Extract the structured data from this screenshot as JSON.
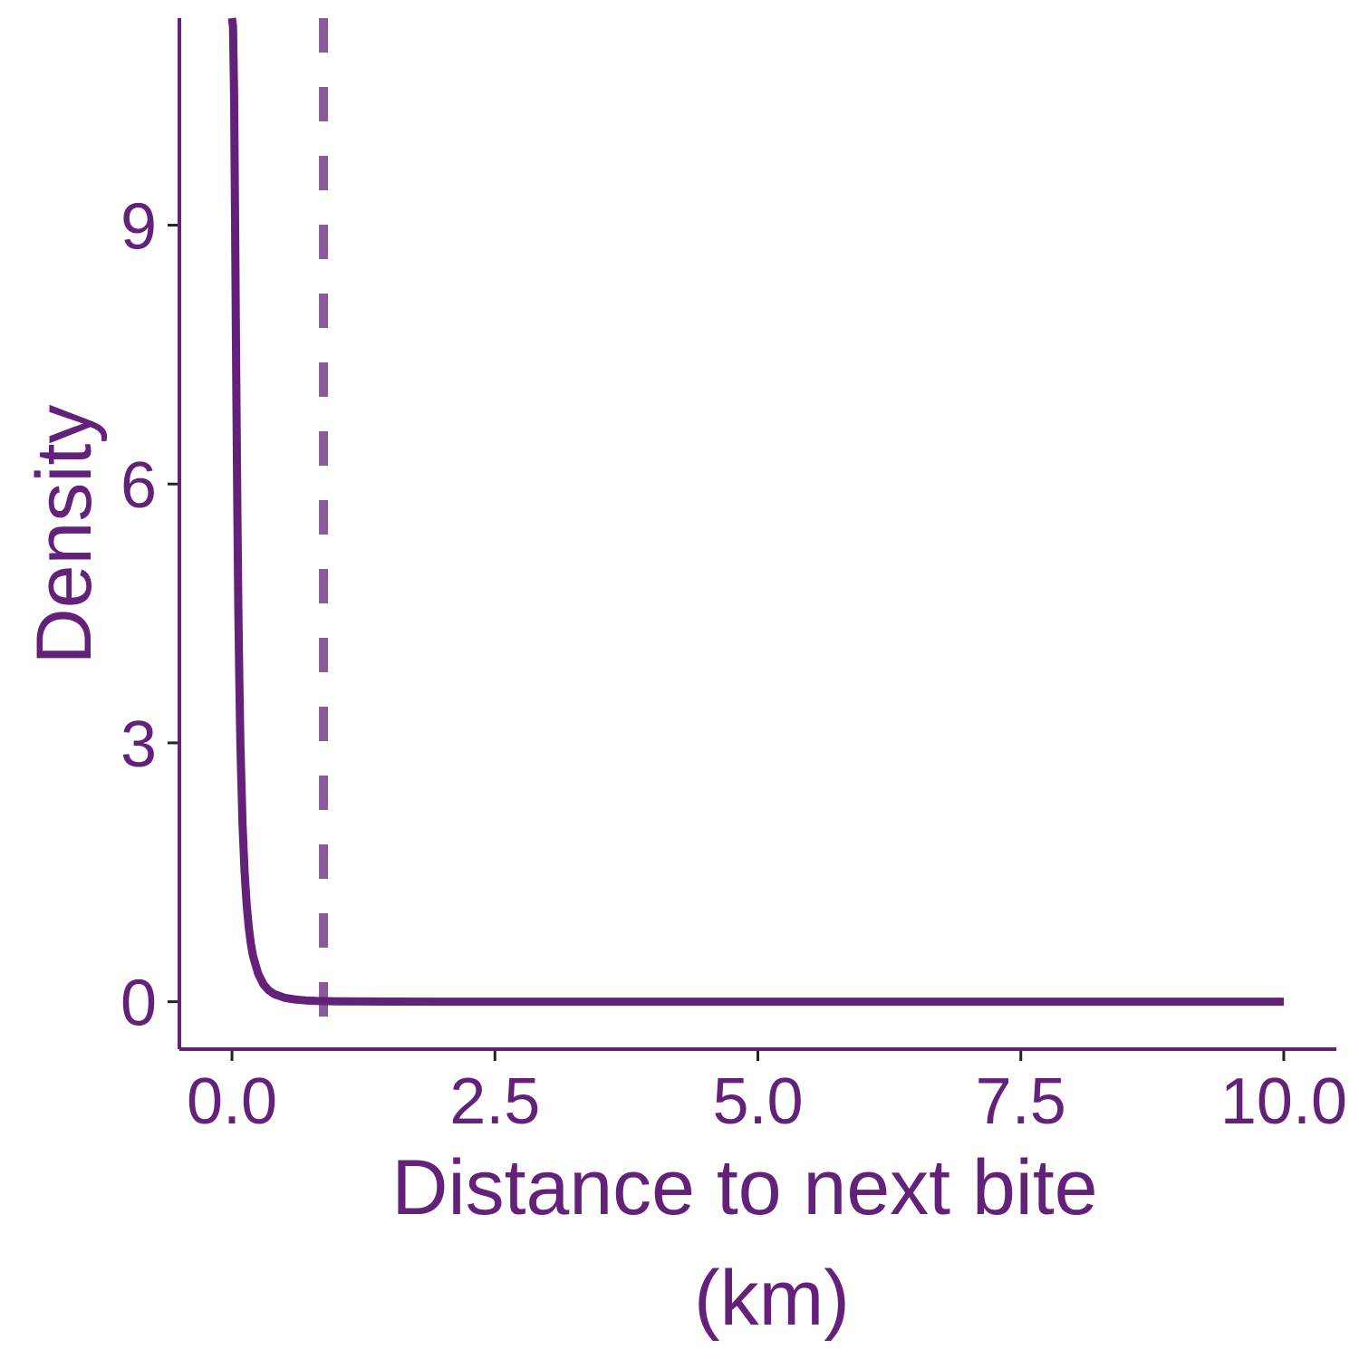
{
  "chart_data": {
    "type": "line",
    "xlabel_lines": [
      "Distance to next bite",
      "(km)"
    ],
    "ylabel": "Density",
    "xlim": [
      -0.5,
      10.5
    ],
    "ylim": [
      -0.55,
      11.4
    ],
    "x_ticks": [
      0.0,
      2.5,
      5.0,
      7.5,
      10.0
    ],
    "x_tick_labels": [
      "0.0",
      "2.5",
      "5.0",
      "7.5",
      "10.0"
    ],
    "y_ticks": [
      0,
      3,
      6,
      9
    ],
    "y_tick_labels": [
      "0",
      "3",
      "6",
      "9"
    ],
    "series": [
      {
        "style": "solid",
        "x": [
          0.0,
          0.01,
          0.02,
          0.03,
          0.04,
          0.05,
          0.06,
          0.07,
          0.08,
          0.1,
          0.12,
          0.14,
          0.16,
          0.18,
          0.2,
          0.25,
          0.3,
          0.35,
          0.4,
          0.5,
          0.6,
          0.7,
          0.8,
          1.0,
          1.5,
          2.0,
          3.0,
          5.0,
          7.5,
          10.0
        ],
        "y": [
          11.5,
          11.3,
          10.5,
          9.0,
          7.3,
          5.8,
          4.6,
          3.7,
          3.0,
          2.05,
          1.5,
          1.12,
          0.86,
          0.67,
          0.53,
          0.32,
          0.2,
          0.13,
          0.09,
          0.045,
          0.025,
          0.015,
          0.009,
          0.004,
          0.001,
          0.0,
          0.0,
          0.0,
          0.0,
          0.0
        ]
      }
    ],
    "vline": {
      "x": 0.87,
      "style": "dashed"
    },
    "grid": false,
    "legend": "none",
    "colors": {
      "line": "#63217a",
      "vline": "#8a5a9a",
      "text": "#63217a",
      "axis": "#63217a",
      "ticks": "#222222"
    }
  }
}
